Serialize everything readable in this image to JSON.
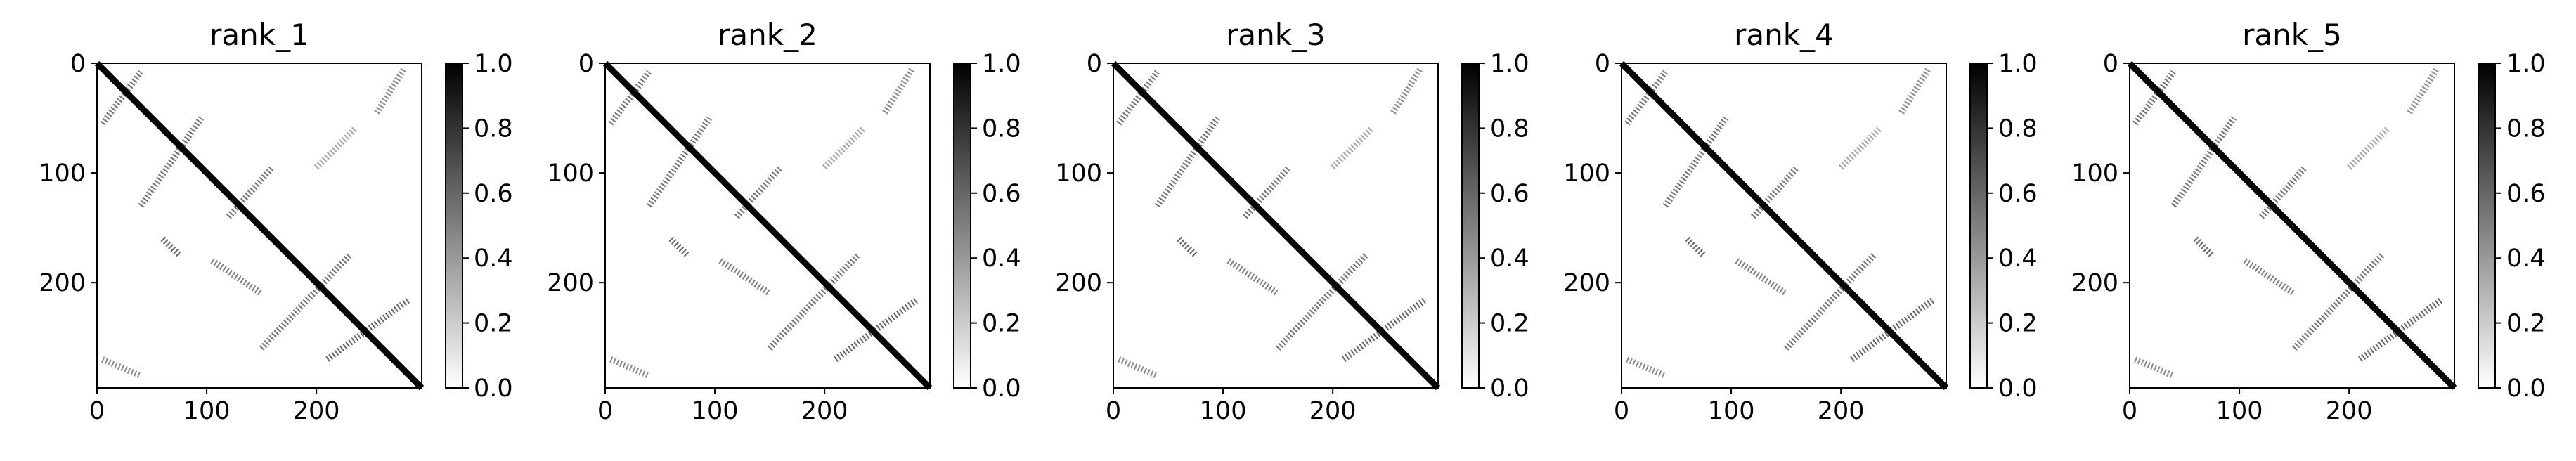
{
  "figure": {
    "panel_titles": [
      "rank_1",
      "rank_2",
      "rank_3",
      "rank_4",
      "rank_5"
    ]
  },
  "chart_data": [
    {
      "type": "heatmap",
      "title": "rank_1",
      "x_ticks": [
        0,
        100,
        200
      ],
      "y_ticks": [
        0,
        100,
        200
      ],
      "xlim": [
        0,
        296
      ],
      "ylim": [
        296,
        0
      ],
      "colorbar": {
        "min": 0.0,
        "max": 1.0,
        "ticks": [
          "0.0",
          "0.2",
          "0.4",
          "0.6",
          "0.8",
          "1.0"
        ],
        "colormap": "white-to-black"
      },
      "grid": false,
      "description_values": {
        "diagonal_band": {
          "from": [
            0,
            0
          ],
          "to": [
            296,
            296
          ],
          "value": 1.0
        },
        "secondary_diagonals": [
          {
            "from": [
              5,
              55
            ],
            "to": [
              40,
              8
            ],
            "value": 0.5
          },
          {
            "from": [
              40,
              130
            ],
            "to": [
              95,
              50
            ],
            "value": 0.5
          },
          {
            "from": [
              120,
              140
            ],
            "to": [
              160,
              95
            ],
            "value": 0.5
          },
          {
            "from": [
              150,
              260
            ],
            "to": [
              230,
              175
            ],
            "value": 0.5
          },
          {
            "from": [
              210,
              270
            ],
            "to": [
              285,
              215
            ],
            "value": 0.5
          },
          {
            "from": [
              255,
              45
            ],
            "to": [
              280,
              5
            ],
            "value": 0.4
          }
        ]
      }
    },
    {
      "type": "heatmap",
      "title": "rank_2",
      "x_ticks": [
        0,
        100,
        200
      ],
      "y_ticks": [
        0,
        100,
        200
      ],
      "xlim": [
        0,
        296
      ],
      "ylim": [
        296,
        0
      ],
      "colorbar": {
        "min": 0.0,
        "max": 1.0,
        "ticks": [
          "0.0",
          "0.2",
          "0.4",
          "0.6",
          "0.8",
          "1.0"
        ],
        "colormap": "white-to-black"
      },
      "grid": false
    },
    {
      "type": "heatmap",
      "title": "rank_3",
      "x_ticks": [
        0,
        100,
        200
      ],
      "y_ticks": [
        0,
        100,
        200
      ],
      "xlim": [
        0,
        296
      ],
      "ylim": [
        296,
        0
      ],
      "colorbar": {
        "min": 0.0,
        "max": 1.0,
        "ticks": [
          "0.0",
          "0.2",
          "0.4",
          "0.6",
          "0.8",
          "1.0"
        ],
        "colormap": "white-to-black"
      },
      "grid": false
    },
    {
      "type": "heatmap",
      "title": "rank_4",
      "x_ticks": [
        0,
        100,
        200
      ],
      "y_ticks": [
        0,
        100,
        200
      ],
      "xlim": [
        0,
        296
      ],
      "ylim": [
        296,
        0
      ],
      "colorbar": {
        "min": 0.0,
        "max": 1.0,
        "ticks": [
          "0.0",
          "0.2",
          "0.4",
          "0.6",
          "0.8",
          "1.0"
        ],
        "colormap": "white-to-black"
      },
      "grid": false
    },
    {
      "type": "heatmap",
      "title": "rank_5",
      "x_ticks": [
        0,
        100,
        200
      ],
      "y_ticks": [
        0,
        100,
        200
      ],
      "xlim": [
        0,
        296
      ],
      "ylim": [
        296,
        0
      ],
      "colorbar": {
        "min": 0.0,
        "max": 1.0,
        "ticks": [
          "0.0",
          "0.2",
          "0.4",
          "0.6",
          "0.8",
          "1.0"
        ],
        "colormap": "white-to-black"
      },
      "grid": false
    }
  ]
}
